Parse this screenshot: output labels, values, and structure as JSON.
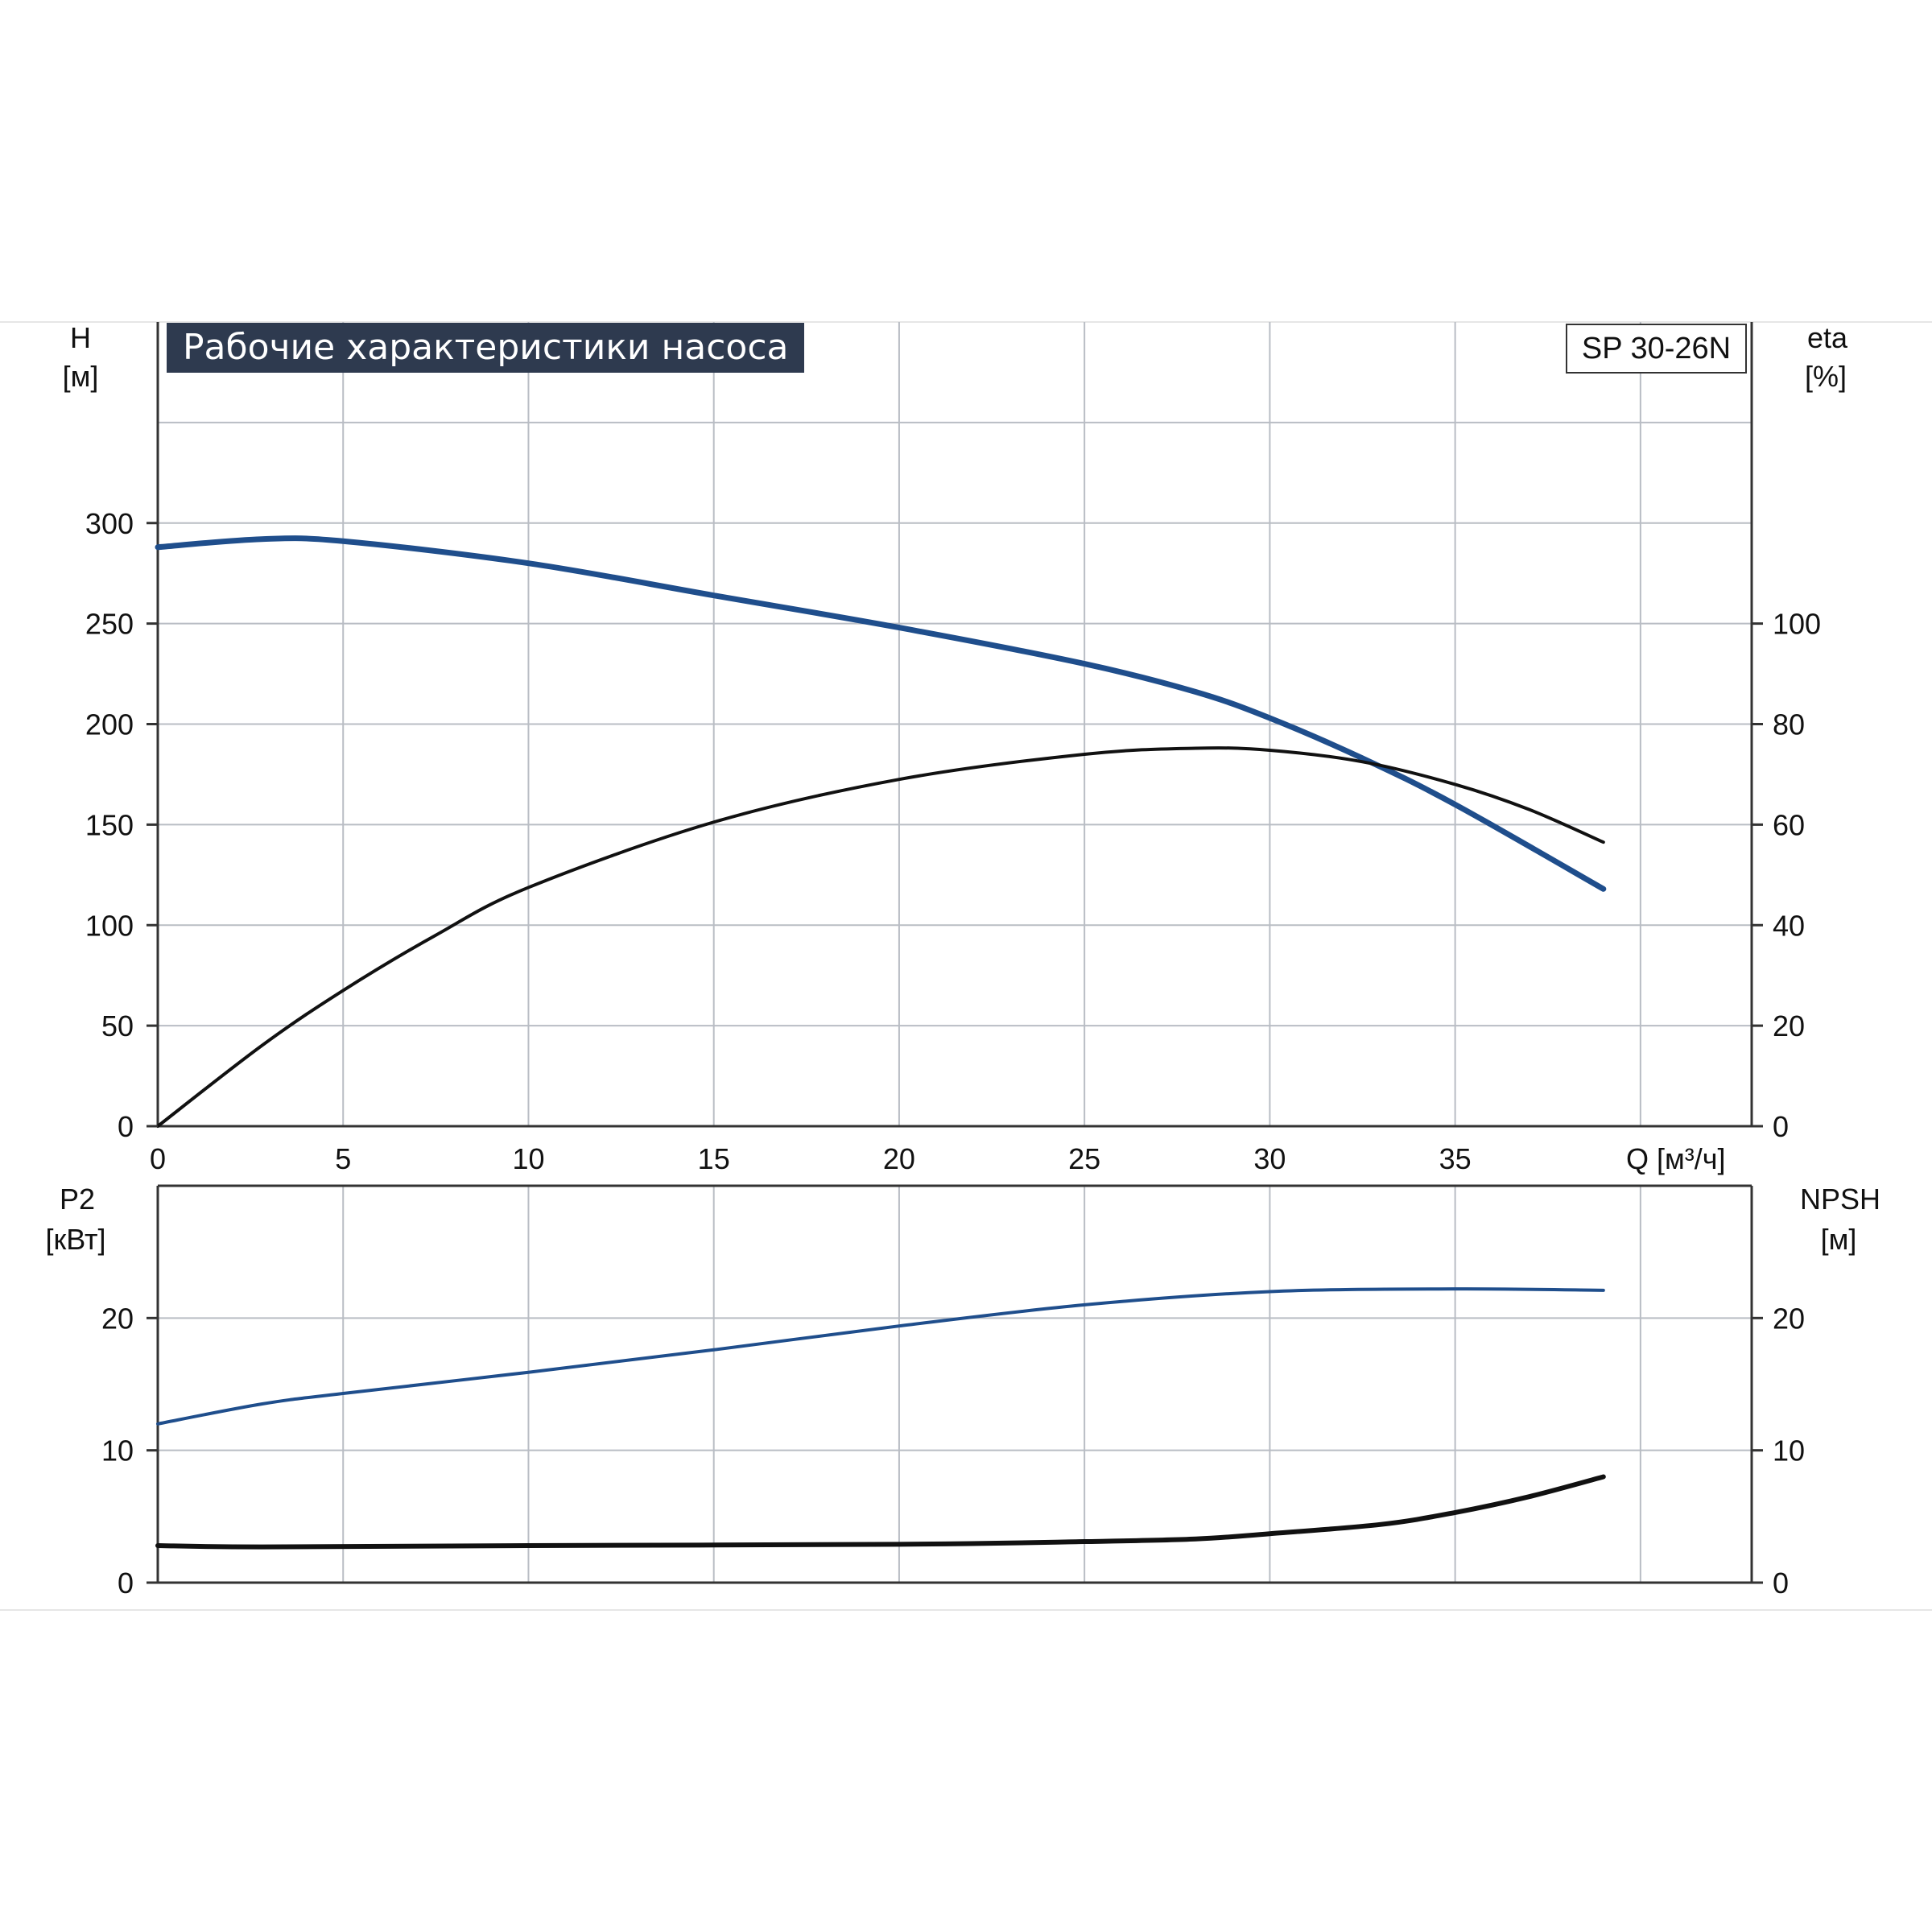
{
  "title": "Рабочие характеристики насоса",
  "model": "SP 30-26N",
  "colors": {
    "head": "#1f4e8c",
    "eta": "#111111",
    "p2": "#1f4e8c",
    "npsh": "#111111",
    "banner": "#2e3a4f"
  },
  "chart_data": [
    {
      "type": "line",
      "name": "top-panel",
      "xlabel": "Q [м³/ч]",
      "x_ticks": [
        0,
        5,
        10,
        15,
        20,
        25,
        30,
        35
      ],
      "xlim": [
        0,
        43
      ],
      "ylabel_left": [
        "H",
        "[м]"
      ],
      "ylabel_right": [
        "eta",
        "[%]"
      ],
      "y_left_ticks": [
        0,
        50,
        100,
        150,
        200,
        250,
        300
      ],
      "y_left_lim": [
        0,
        400
      ],
      "y_right_ticks": [
        0,
        20,
        40,
        60,
        80,
        100
      ],
      "y_right_lim": [
        0,
        160
      ],
      "grid": true,
      "series": [
        {
          "axis": "left",
          "color": "#1f4e8c",
          "x": [
            0,
            2.8,
            5,
            10,
            15,
            20,
            25,
            28,
            30,
            32.5,
            35,
            39
          ],
          "y": [
            288,
            292,
            291,
            280,
            264,
            248,
            230,
            216,
            203,
            183,
            160,
            118
          ]
        },
        {
          "axis": "right",
          "color": "#111111",
          "x": [
            0,
            2.8,
            5,
            7.5,
            10,
            15,
            20,
            25,
            28,
            30,
            32.5,
            35,
            37,
            39
          ],
          "y": [
            0,
            16,
            27,
            38,
            47.5,
            60.5,
            69,
            74,
            75.2,
            74.8,
            72.5,
            68,
            63,
            56.5
          ]
        }
      ]
    },
    {
      "type": "line",
      "name": "bottom-panel",
      "xlim": [
        0,
        43
      ],
      "ylabel_left": [
        "P2",
        "[кВт]"
      ],
      "ylabel_right": [
        "NPSH",
        "[м]"
      ],
      "y_left_ticks": [
        0,
        10,
        20
      ],
      "y_left_lim": [
        0,
        30
      ],
      "y_right_ticks": [
        0,
        10,
        20
      ],
      "y_right_lim": [
        0,
        30
      ],
      "grid": true,
      "series": [
        {
          "axis": "left",
          "color": "#1f4e8c",
          "x": [
            0,
            2.8,
            5,
            10,
            15,
            20,
            25,
            30,
            35,
            39
          ],
          "y": [
            12,
            13.5,
            14.3,
            15.9,
            17.6,
            19.4,
            21,
            22,
            22.2,
            22.1
          ]
        },
        {
          "axis": "right",
          "color": "#111111",
          "x": [
            0,
            2.8,
            10,
            20,
            25,
            28,
            30,
            33,
            35,
            37,
            39
          ],
          "y": [
            2.8,
            2.7,
            2.8,
            2.9,
            3.1,
            3.3,
            3.7,
            4.4,
            5.3,
            6.5,
            8
          ]
        }
      ]
    }
  ]
}
